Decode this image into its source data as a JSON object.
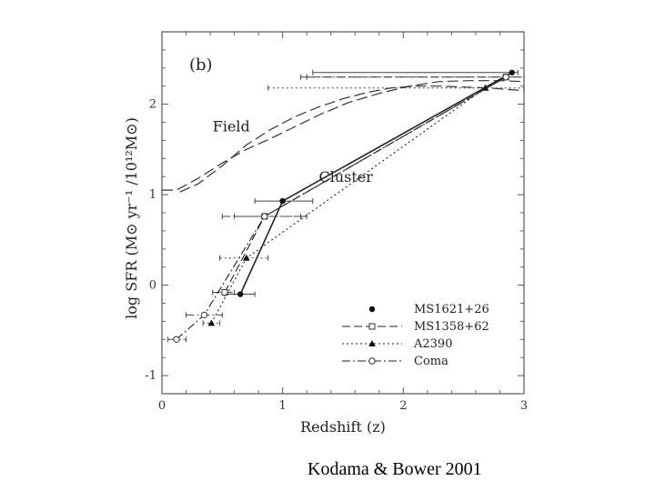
{
  "credit": "Kodama & Bower 2001",
  "chart_data": {
    "type": "line",
    "panel_label": "(b)",
    "xlabel": "Redshift (z)",
    "ylabel": "log SFR (M⊙ yr⁻¹ /10¹²M⊙)",
    "xlim": [
      0,
      3
    ],
    "ylim": [
      -1.2,
      2.8
    ],
    "xticks": [
      {
        "value": 0,
        "label": "0"
      },
      {
        "value": 1,
        "label": "1"
      },
      {
        "value": 2,
        "label": "2"
      },
      {
        "value": 3,
        "label": "3"
      }
    ],
    "yticks": [
      {
        "value": -1,
        "label": "-1"
      },
      {
        "value": 0,
        "label": "0"
      },
      {
        "value": 1,
        "label": "1"
      },
      {
        "value": 2,
        "label": "2"
      }
    ],
    "annotations": [
      {
        "text": "Field",
        "x": 0.42,
        "y": 1.7
      },
      {
        "text": "Cluster",
        "x": 1.3,
        "y": 1.14
      }
    ],
    "legend_position": "bottom-right",
    "curves": [
      {
        "style": "long-dash",
        "x": [
          0,
          0.12,
          0.3,
          0.5,
          0.7,
          0.9,
          1.1,
          1.3,
          1.55,
          1.8,
          2.05,
          2.3,
          2.55,
          2.8,
          3.0
        ],
        "y": [
          1.05,
          1.05,
          1.18,
          1.35,
          1.5,
          1.62,
          1.75,
          1.88,
          2.02,
          2.12,
          2.2,
          2.25,
          2.26,
          2.26,
          2.25
        ]
      },
      {
        "style": "long-dash",
        "x": [
          0.15,
          0.3,
          0.5,
          0.7,
          0.9,
          1.1,
          1.3,
          1.5,
          1.7,
          1.9,
          2.1,
          2.3,
          2.5,
          2.7,
          3.0
        ],
        "y": [
          1.03,
          1.12,
          1.32,
          1.55,
          1.72,
          1.86,
          1.97,
          2.06,
          2.13,
          2.18,
          2.2,
          2.2,
          2.19,
          2.18,
          2.15
        ]
      }
    ],
    "series": [
      {
        "name": "MS1621+26",
        "dash": "",
        "marker": "filled-circle",
        "points": [
          {
            "x": 0.65,
            "y": -0.1,
            "xerr": [
              0.52,
              0.77
            ]
          },
          {
            "x": 1.0,
            "y": 0.93,
            "xerr": [
              0.77,
              1.25
            ]
          },
          {
            "x": 2.9,
            "y": 2.35,
            "xerr": [
              1.25,
              2.95
            ]
          }
        ]
      },
      {
        "name": "MS1358+62",
        "dash": "9,4",
        "marker": "open-square",
        "points": [
          {
            "x": 0.52,
            "y": -0.08,
            "xerr": [
              0.42,
              0.6
            ]
          },
          {
            "x": 0.85,
            "y": 0.76,
            "xerr": [
              0.6,
              1.15
            ]
          },
          {
            "x": 2.85,
            "y": 2.3,
            "xerr": [
              1.15,
              3.0
            ]
          }
        ]
      },
      {
        "name": "A2390",
        "dash": "2,3",
        "marker": "filled-triangle",
        "points": [
          {
            "x": 0.41,
            "y": -0.42,
            "xerr": [
              0.34,
              0.48
            ]
          },
          {
            "x": 0.7,
            "y": 0.3,
            "xerr": [
              0.48,
              0.88
            ]
          },
          {
            "x": 2.68,
            "y": 2.18,
            "xerr": [
              0.88,
              3.0
            ]
          }
        ]
      },
      {
        "name": "Coma",
        "dash": "9,3,2,3",
        "marker": "open-circle",
        "points": [
          {
            "x": 0.12,
            "y": -0.6,
            "xerr": [
              0.05,
              0.2
            ]
          },
          {
            "x": 0.35,
            "y": -0.33,
            "xerr": [
              0.2,
              0.5
            ]
          },
          {
            "x": 0.85,
            "y": 0.76,
            "xerr": [
              0.5,
              1.2
            ]
          },
          {
            "x": 2.85,
            "y": 2.3,
            "xerr": [
              1.2,
              3.0
            ]
          }
        ]
      }
    ]
  }
}
